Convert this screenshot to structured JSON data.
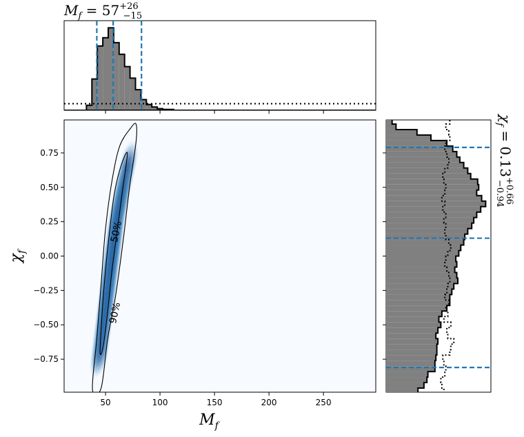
{
  "chart_data": [
    {
      "type": "histogram",
      "panel": "top-marginal",
      "title_main": "M",
      "title_sub": "f",
      "title_value": " = 57",
      "title_err_plus": "+26",
      "title_err_minus": "−15",
      "median": 57,
      "interval": [
        42,
        83
      ],
      "bin_width": 5,
      "x": [
        35,
        40,
        45,
        50,
        55,
        60,
        65,
        70,
        75,
        80,
        85,
        90,
        95,
        100,
        105,
        110,
        115
      ],
      "values": [
        0.06,
        0.38,
        0.78,
        0.88,
        1.0,
        0.82,
        0.68,
        0.53,
        0.39,
        0.25,
        0.13,
        0.07,
        0.04,
        0.02,
        0.01,
        0.01,
        0.0
      ],
      "prior_level": 0.08
    },
    {
      "type": "density",
      "panel": "joint",
      "xlabel_main": "M",
      "xlabel_sub": "f",
      "ylabel_main": "χ",
      "ylabel_sub": "f",
      "xlim": [
        12,
        298
      ],
      "ylim": [
        -0.99,
        0.99
      ],
      "xticks": [
        "50",
        "100",
        "150",
        "200",
        "250"
      ],
      "xtick_values": [
        50,
        100,
        150,
        200,
        250
      ],
      "yticks": [
        "−0.75",
        "−0.50",
        "−0.25",
        "0.00",
        "0.25",
        "0.50",
        "0.75"
      ],
      "ytick_values": [
        -0.75,
        -0.5,
        -0.25,
        0.0,
        0.25,
        0.5,
        0.75
      ],
      "contour_labels": [
        "50%",
        "90%"
      ],
      "ridge": [
        [
          44,
          -0.75
        ],
        [
          48,
          -0.5
        ],
        [
          52,
          -0.25
        ],
        [
          56,
          0.0
        ],
        [
          60,
          0.25
        ],
        [
          66,
          0.5
        ],
        [
          73,
          0.75
        ]
      ],
      "contour_90": [
        [
          38,
          -0.97
        ],
        [
          42,
          -0.6
        ],
        [
          46,
          -0.2
        ],
        [
          50,
          0.2
        ],
        [
          56,
          0.55
        ],
        [
          63,
          0.8
        ],
        [
          73,
          0.93
        ],
        [
          78,
          0.96
        ],
        [
          78,
          0.83
        ],
        [
          72,
          0.5
        ],
        [
          66,
          0.1
        ],
        [
          59,
          -0.3
        ],
        [
          52,
          -0.6
        ],
        [
          46,
          -0.96
        ]
      ],
      "contour_50": [
        [
          45,
          -0.7
        ],
        [
          47,
          -0.4
        ],
        [
          50,
          -0.1
        ],
        [
          54,
          0.2
        ],
        [
          58,
          0.45
        ],
        [
          64,
          0.65
        ],
        [
          70,
          0.75
        ],
        [
          66,
          0.5
        ],
        [
          61,
          0.2
        ],
        [
          56,
          -0.1
        ],
        [
          52,
          -0.4
        ],
        [
          48,
          -0.65
        ]
      ]
    },
    {
      "type": "histogram",
      "panel": "right-marginal",
      "title_main": "χ",
      "title_sub": "f",
      "title_value": " = 0.13",
      "title_err_plus": "+0.66",
      "title_err_minus": "−0.94",
      "median": 0.13,
      "interval": [
        -0.81,
        0.79
      ],
      "bin_width": 0.04,
      "y": [
        -0.98,
        -0.94,
        -0.9,
        -0.86,
        -0.82,
        -0.78,
        -0.74,
        -0.7,
        -0.66,
        -0.62,
        -0.58,
        -0.54,
        -0.5,
        -0.46,
        -0.42,
        -0.38,
        -0.34,
        -0.3,
        -0.26,
        -0.22,
        -0.18,
        -0.14,
        -0.1,
        -0.06,
        -0.02,
        0.02,
        0.06,
        0.1,
        0.14,
        0.18,
        0.22,
        0.26,
        0.3,
        0.34,
        0.38,
        0.42,
        0.46,
        0.5,
        0.54,
        0.58,
        0.62,
        0.66,
        0.7,
        0.74,
        0.78,
        0.82,
        0.86,
        0.9,
        0.94,
        0.98
      ],
      "values": [
        0.32,
        0.38,
        0.41,
        0.42,
        0.49,
        0.49,
        0.5,
        0.51,
        0.51,
        0.52,
        0.5,
        0.52,
        0.55,
        0.53,
        0.56,
        0.61,
        0.64,
        0.64,
        0.66,
        0.68,
        0.72,
        0.71,
        0.69,
        0.71,
        0.7,
        0.73,
        0.75,
        0.78,
        0.79,
        0.82,
        0.86,
        0.88,
        0.91,
        0.95,
        1.0,
        0.96,
        0.91,
        0.93,
        0.92,
        0.85,
        0.82,
        0.78,
        0.74,
        0.71,
        0.67,
        0.61,
        0.45,
        0.31,
        0.1,
        0.06
      ],
      "prior": [
        0.58,
        0.56,
        0.55,
        0.59,
        0.6,
        0.58,
        0.57,
        0.64,
        0.65,
        0.68,
        0.62,
        0.61,
        0.65,
        0.58,
        0.62,
        0.6,
        0.63,
        0.59,
        0.61,
        0.62,
        0.64,
        0.63,
        0.61,
        0.59,
        0.6,
        0.62,
        0.65,
        0.63,
        0.6,
        0.59,
        0.6,
        0.58,
        0.6,
        0.57,
        0.59,
        0.56,
        0.59,
        0.6,
        0.58,
        0.57,
        0.59,
        0.62,
        0.63,
        0.61,
        0.59,
        0.6,
        0.64,
        0.63,
        0.6,
        0.64
      ]
    }
  ],
  "colors": {
    "hist_fill": "#808080",
    "hist_edge": "#000000",
    "credible_lines": "#1f77b4",
    "density_low": "#f7fbff",
    "density_high": "#08306b",
    "contour": "#000000"
  }
}
